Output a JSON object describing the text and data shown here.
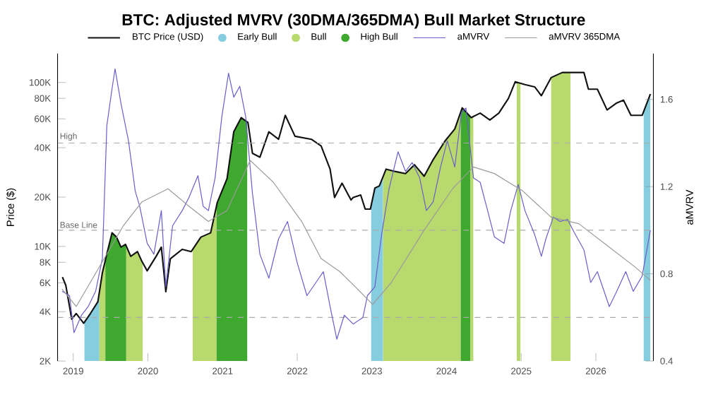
{
  "chart_data": {
    "type": "line",
    "title": "BTC: Adjusted MVRV (30DMA/365DMA) Bull Market Structure",
    "ylabel": "Price ($)",
    "y2label": "aMVRV",
    "log": "y",
    "legend": "top",
    "line_style": "solid",
    "xlim": [
      2018.79,
      2026.77
    ],
    "xticks": [
      2019,
      2020,
      2021,
      2022,
      2023,
      2024,
      2025,
      2026
    ],
    "ylim": [
      2000,
      150000
    ],
    "yticks": [
      {
        "value": 2000,
        "label": "2K"
      },
      {
        "value": 4000,
        "label": "4K"
      },
      {
        "value": 6000,
        "label": "6K"
      },
      {
        "value": 8000,
        "label": "8K"
      },
      {
        "value": 10000,
        "label": "10K"
      },
      {
        "value": 20000,
        "label": "20K"
      },
      {
        "value": 40000,
        "label": "40K"
      },
      {
        "value": 60000,
        "label": "60K"
      },
      {
        "value": 80000,
        "label": "80K"
      },
      {
        "value": 100000,
        "label": "100K"
      }
    ],
    "y2lim": [
      0.4,
      1.81
    ],
    "y2ticks": [
      0.4,
      0.8,
      1.2,
      1.6
    ],
    "series": [
      {
        "name": "BTC Price (USD)",
        "color": "#111111",
        "x": [
          2018.855,
          2018.9,
          2018.95,
          2018.98,
          2019.04,
          2019.14,
          2019.23,
          2019.33,
          2019.39,
          2019.45,
          2019.52,
          2019.58,
          2019.64,
          2019.7,
          2019.77,
          2019.86,
          2019.92,
          2019.99,
          2020.11,
          2020.18,
          2020.24,
          2020.3,
          2020.46,
          2020.58,
          2020.71,
          2020.84,
          2020.93,
          2021.06,
          2021.15,
          2021.25,
          2021.34,
          2021.4,
          2021.5,
          2021.62,
          2021.75,
          2021.84,
          2021.97,
          2022.19,
          2022.32,
          2022.44,
          2022.5,
          2022.6,
          2022.72,
          2022.75,
          2022.85,
          2022.91,
          2022.98,
          2023.04,
          2023.1,
          2023.19,
          2023.32,
          2023.45,
          2023.57,
          2023.7,
          2023.82,
          2023.98,
          2024.11,
          2024.21,
          2024.33,
          2024.45,
          2024.58,
          2024.7,
          2024.83,
          2024.92,
          2025.05,
          2025.18,
          2025.27,
          2025.4,
          2025.55,
          2025.68,
          2025.84,
          2025.9,
          2026.02,
          2026.15,
          2026.28,
          2026.37,
          2026.47,
          2026.62,
          2026.73
        ],
        "values": [
          6500,
          5800,
          4300,
          3600,
          3900,
          3400,
          3900,
          4600,
          6900,
          9000,
          12100,
          11400,
          9900,
          10300,
          8700,
          9300,
          8100,
          7100,
          8700,
          9900,
          5300,
          8400,
          9600,
          9300,
          11400,
          12100,
          18600,
          25900,
          50000,
          61000,
          57000,
          37000,
          35000,
          50000,
          45000,
          63000,
          47000,
          45000,
          41000,
          29600,
          19900,
          24300,
          19200,
          19900,
          20600,
          16900,
          16900,
          22700,
          23400,
          29600,
          28600,
          27800,
          31500,
          26800,
          33800,
          44000,
          52000,
          70000,
          61000,
          65000,
          59000,
          65000,
          80000,
          101000,
          97000,
          94000,
          83000,
          107000,
          115000,
          115000,
          115000,
          91000,
          91000,
          68000,
          75000,
          78000,
          63000,
          63000,
          85000
        ]
      },
      {
        "name": "aMVRV",
        "color": "#6a5fc8",
        "axis": "y2",
        "x": [
          2018.85,
          2018.95,
          2019.01,
          2019.11,
          2019.2,
          2019.3,
          2019.39,
          2019.45,
          2019.52,
          2019.56,
          2019.64,
          2019.74,
          2019.83,
          2019.89,
          2019.99,
          2020.08,
          2020.18,
          2020.24,
          2020.33,
          2020.46,
          2020.55,
          2020.67,
          2020.74,
          2020.81,
          2020.9,
          2020.99,
          2021.08,
          2021.15,
          2021.23,
          2021.31,
          2021.4,
          2021.5,
          2021.62,
          2021.75,
          2021.87,
          2022.0,
          2022.13,
          2022.25,
          2022.35,
          2022.44,
          2022.53,
          2022.63,
          2022.75,
          2022.88,
          2022.94,
          2023.04,
          2023.13,
          2023.23,
          2023.35,
          2023.45,
          2023.54,
          2023.64,
          2023.73,
          2023.82,
          2023.92,
          2024.01,
          2024.11,
          2024.2,
          2024.26,
          2024.36,
          2024.45,
          2024.55,
          2024.64,
          2024.77,
          2024.86,
          2024.96,
          2025.05,
          2025.18,
          2025.27,
          2025.33,
          2025.43,
          2025.52,
          2025.62,
          2025.71,
          2025.84,
          2025.93,
          2026.02,
          2026.18,
          2026.28,
          2026.4,
          2026.5,
          2026.62,
          2026.73
        ],
        "values": [
          0.72,
          0.7,
          0.53,
          0.61,
          0.65,
          0.72,
          0.87,
          1.48,
          1.65,
          1.74,
          1.58,
          1.41,
          1.18,
          1.11,
          0.94,
          0.89,
          1.09,
          0.74,
          1.02,
          1.09,
          1.15,
          1.25,
          1.11,
          1.09,
          1.24,
          1.52,
          1.72,
          1.61,
          1.66,
          1.52,
          1.17,
          0.89,
          0.78,
          0.96,
          1.04,
          0.85,
          0.7,
          0.76,
          0.81,
          0.65,
          0.5,
          0.61,
          0.57,
          0.6,
          0.7,
          0.74,
          0.98,
          1.19,
          1.36,
          1.27,
          1.31,
          1.24,
          1.09,
          1.13,
          1.29,
          1.41,
          1.29,
          1.54,
          1.56,
          1.24,
          1.22,
          1.09,
          0.97,
          0.94,
          1.09,
          1.21,
          1.09,
          0.98,
          0.88,
          0.96,
          1.06,
          1.04,
          1.05,
          0.99,
          0.91,
          0.76,
          0.81,
          0.65,
          0.72,
          0.81,
          0.72,
          0.79,
          1.0
        ]
      },
      {
        "name": "aMVRV 365DMA",
        "color": "#9a9a9a",
        "axis": "y2",
        "x": [
          2018.85,
          2019.04,
          2019.67,
          2019.92,
          2020.27,
          2020.55,
          2020.81,
          2021.06,
          2021.37,
          2021.68,
          2022.06,
          2022.32,
          2022.57,
          2022.75,
          2023.01,
          2023.26,
          2023.7,
          2024.08,
          2024.36,
          2024.64,
          2025.02,
          2025.4,
          2025.77,
          2026.15,
          2026.53,
          2026.73
        ],
        "values": [
          0.73,
          0.65,
          1.02,
          1.13,
          1.19,
          1.11,
          1.04,
          1.09,
          1.32,
          1.22,
          1.04,
          0.87,
          0.81,
          0.75,
          0.66,
          0.76,
          1.0,
          1.19,
          1.29,
          1.26,
          1.18,
          1.06,
          1.03,
          0.93,
          0.83,
          0.77
        ]
      }
    ],
    "bands": [
      {
        "axis": "x",
        "from": 2019.15,
        "to": 2019.35,
        "label": "Early Bull",
        "color": "#86cde0"
      },
      {
        "axis": "x",
        "from": 2019.35,
        "to": 2019.43,
        "label": "Bull",
        "color": "#b8d96e"
      },
      {
        "axis": "x",
        "from": 2019.43,
        "to": 2019.71,
        "label": "High Bull",
        "color": "#3fa82e"
      },
      {
        "axis": "x",
        "from": 2019.71,
        "to": 2019.93,
        "color": "#b8d96e"
      },
      {
        "axis": "x",
        "from": 2020.6,
        "to": 2020.92,
        "color": "#b8d96e"
      },
      {
        "axis": "x",
        "from": 2020.92,
        "to": 2021.33,
        "color": "#3fa82e"
      },
      {
        "axis": "x",
        "from": 2022.99,
        "to": 2023.15,
        "color": "#86cde0"
      },
      {
        "axis": "x",
        "from": 2023.15,
        "to": 2024.19,
        "color": "#b8d96e"
      },
      {
        "axis": "x",
        "from": 2024.19,
        "to": 2024.32,
        "color": "#3fa82e"
      },
      {
        "axis": "x",
        "from": 2024.32,
        "to": 2024.36,
        "color": "#b8d96e"
      },
      {
        "axis": "x",
        "from": 2024.94,
        "to": 2024.99,
        "color": "#b8d96e"
      },
      {
        "axis": "x",
        "from": 2025.4,
        "to": 2025.66,
        "color": "#b8d96e"
      },
      {
        "axis": "x",
        "from": 2026.64,
        "to": 2026.73,
        "color": "#86cde0"
      }
    ],
    "ref_lines": [
      {
        "axis": "y2",
        "value": 1.4,
        "label": "High",
        "color": "#aaaaaa",
        "line_style": "dashed"
      },
      {
        "axis": "y2",
        "value": 1.0,
        "label": "Base Line",
        "color": "#aaaaaa",
        "line_style": "dashed"
      },
      {
        "axis": "y2",
        "value": 0.6,
        "color": "#aaaaaa",
        "line_style": "dashed"
      }
    ]
  }
}
